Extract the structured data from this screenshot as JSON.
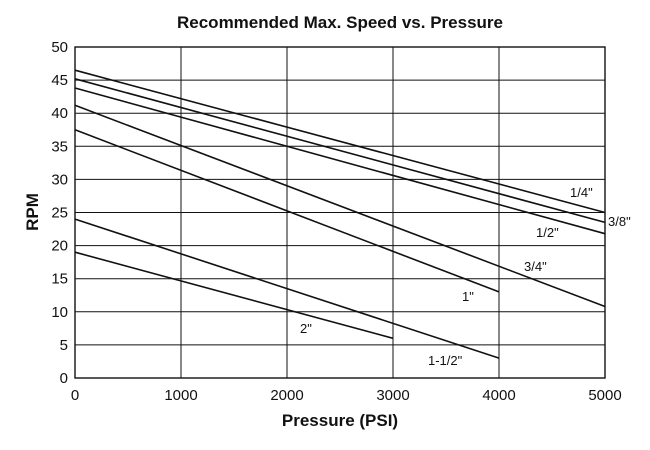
{
  "chart_data": {
    "type": "line",
    "title": "Recommended Max. Speed vs. Pressure",
    "xlabel": "Pressure (PSI)",
    "ylabel": "RPM",
    "xlim": [
      0,
      5000
    ],
    "ylim": [
      0,
      50
    ],
    "x_ticks": [
      0,
      1000,
      2000,
      3000,
      4000,
      5000
    ],
    "y_ticks": [
      0,
      5,
      10,
      15,
      20,
      25,
      30,
      35,
      40,
      45,
      50
    ],
    "grid": true,
    "legend": "inline labels",
    "series": [
      {
        "name": "1/4\"",
        "x": [
          0,
          5000
        ],
        "y": [
          46.5,
          25.0
        ]
      },
      {
        "name": "3/8\"",
        "x": [
          0,
          5000
        ],
        "y": [
          45.2,
          23.5
        ]
      },
      {
        "name": "1/2\"",
        "x": [
          0,
          5000
        ],
        "y": [
          43.8,
          21.8
        ]
      },
      {
        "name": "3/4\"",
        "x": [
          0,
          5000
        ],
        "y": [
          41.2,
          10.8
        ]
      },
      {
        "name": "1\"",
        "x": [
          0,
          4000
        ],
        "y": [
          37.5,
          13.0
        ]
      },
      {
        "name": "1-1/2\"",
        "x": [
          0,
          4000
        ],
        "y": [
          24.0,
          3.0
        ]
      },
      {
        "name": "2\"",
        "x": [
          0,
          3000
        ],
        "y": [
          19.0,
          6.0
        ]
      }
    ]
  }
}
